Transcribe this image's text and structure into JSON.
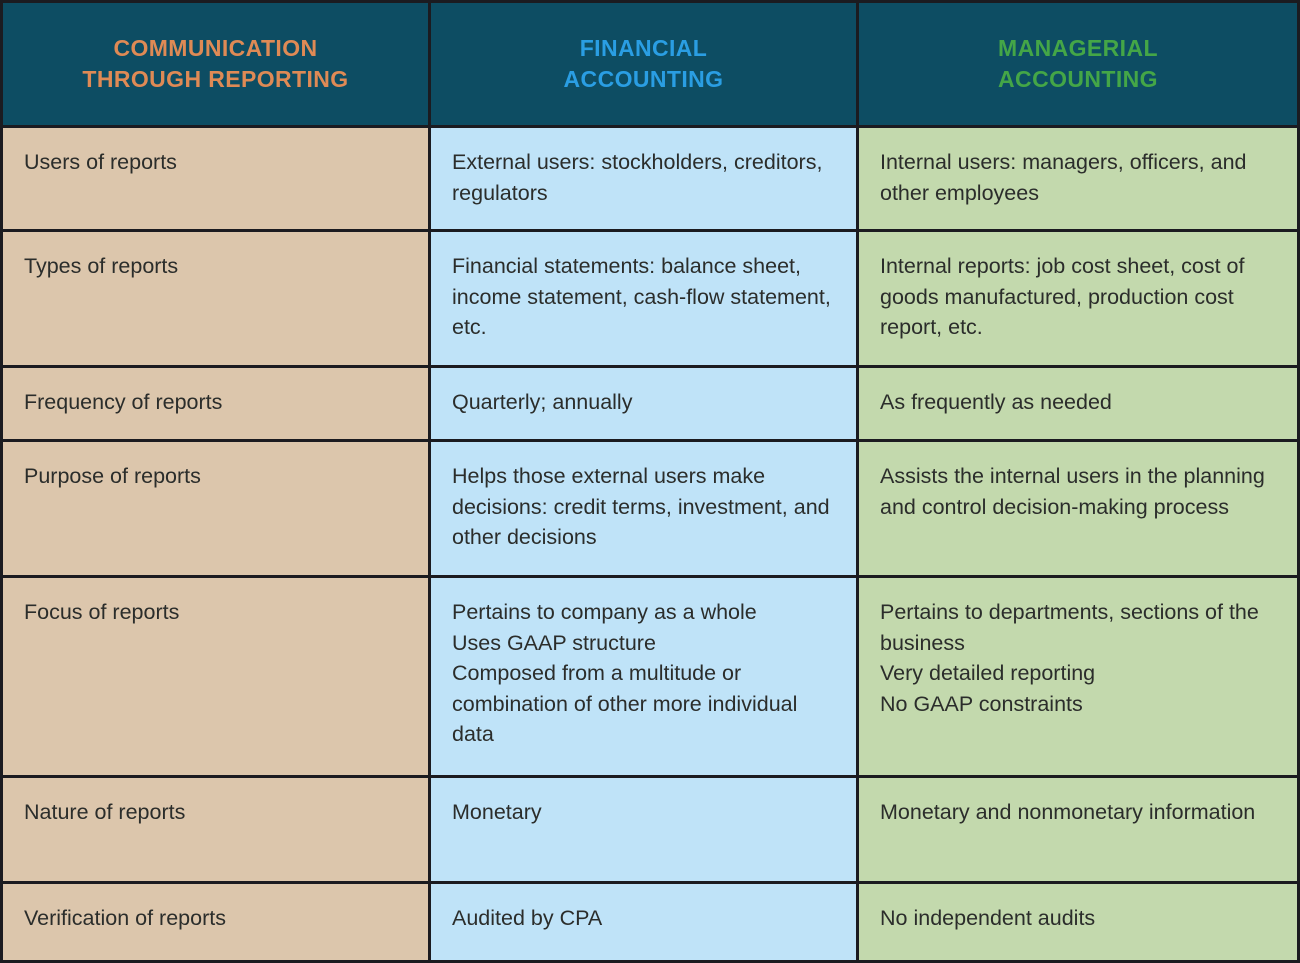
{
  "colors": {
    "border": "#1b1b20",
    "header_bg": "#0d4d63",
    "header_text_reporting": "#df8a55",
    "header_text_financial": "#2a9ee3",
    "header_text_managerial": "#44a647",
    "label_column_bg": "#dcc6ac",
    "financial_column_bg": "#bfe3f8",
    "managerial_column_bg": "#c3d9ad",
    "body_text": "#2b2d2b"
  },
  "chart_data": {
    "type": "table",
    "columns": [
      {
        "label": "COMMUNICATION\nTHROUGH REPORTING"
      },
      {
        "label": "FINANCIAL\nACCOUNTING"
      },
      {
        "label": "MANAGERIAL\nACCOUNTING"
      }
    ],
    "rows": [
      {
        "label": "Users of reports",
        "financial": "External users: stockholders, creditors, regulators",
        "managerial": "Internal users: managers, officers, and other employees"
      },
      {
        "label": "Types of reports",
        "financial": "Financial statements: balance sheet, income statement, cash-flow statement, etc.",
        "managerial": "Internal reports: job cost sheet, cost of goods manufactured, production cost report, etc."
      },
      {
        "label": "Frequency of reports",
        "financial": "Quarterly; annually",
        "managerial": "As frequently as needed"
      },
      {
        "label": "Purpose of reports",
        "financial": "Helps those external users make decisions: credit terms, investment, and other decisions",
        "managerial": "Assists the internal users in the planning and control decision-making process"
      },
      {
        "label": "Focus of reports",
        "financial": "Pertains to company as a whole\nUses GAAP structure\nComposed from a multitude or combination of other more individual data",
        "managerial": "Pertains to departments, sections of the business\nVery detailed reporting\nNo GAAP constraints"
      },
      {
        "label": "Nature of reports",
        "financial": "Monetary",
        "managerial": "Monetary and nonmonetary information"
      },
      {
        "label": "Verification of reports",
        "financial": "Audited by CPA",
        "managerial": "No independent audits"
      }
    ]
  }
}
